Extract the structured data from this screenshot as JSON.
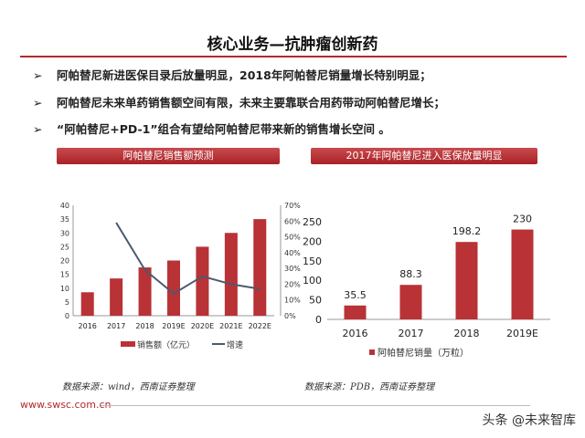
{
  "title": "核心业务—抗肿瘤创新药",
  "bullets": [
    "阿帕替尼新进医保目录后放量明显，2018年阿帕替尼销量增长特别明显；",
    "阿帕替尼未来单药销售额空间有限，未来主要靠联合用药带动阿帕替尼增长；",
    "“阿帕替尼+PD-1”组合有望给阿帕替尼带来新的销售增长空间 。"
  ],
  "bullet_icon": "arrow-right-icon",
  "sections": [
    "阿帕替尼销售额预测",
    "2017年阿帕替尼进入医保放量明显"
  ],
  "sources": [
    "数据来源：wind，西南证券整理",
    "数据来源：PDB，西南证券整理"
  ],
  "footer": {
    "url": "www.swsc.com.cn",
    "watermark": "头条 @未来智库"
  },
  "colors": {
    "accent": "#b4282d",
    "bar": "#b83236",
    "line": "#4a5a6e"
  },
  "chart_data": [
    {
      "type": "bar+line",
      "categories": [
        "2016",
        "2017",
        "2018",
        "2019E",
        "2020E",
        "2021E",
        "2022E"
      ],
      "series": [
        {
          "name": "销售额（亿元）",
          "type": "bar",
          "values": [
            8.5,
            13.5,
            17.5,
            20,
            25,
            30,
            35
          ]
        },
        {
          "name": "增速",
          "type": "line",
          "axis": "right",
          "values": [
            null,
            59,
            29,
            14,
            25,
            20,
            17
          ]
        }
      ],
      "ylim": [
        0,
        40
      ],
      "yticks": [
        "0",
        "5",
        "10",
        "15",
        "20",
        "25",
        "30",
        "35",
        "40"
      ],
      "y2lim": [
        0,
        70
      ],
      "y2ticks": [
        "0%",
        "10%",
        "20%",
        "30%",
        "40%",
        "50%",
        "60%",
        "70%"
      ],
      "legend": "bottom"
    },
    {
      "type": "bar",
      "categories": [
        "2016",
        "2017",
        "2018",
        "2019E"
      ],
      "series": [
        {
          "name": "阿帕替尼销量（万粒）",
          "values": [
            35.5,
            88.3,
            198.2,
            230
          ]
        }
      ],
      "data_labels": [
        "35.5",
        "88.3",
        "198.2",
        "230"
      ],
      "ylim": [
        0,
        250
      ],
      "yticks": [
        "0",
        "50",
        "100",
        "150",
        "200",
        "250"
      ],
      "legend": "bottom"
    }
  ]
}
